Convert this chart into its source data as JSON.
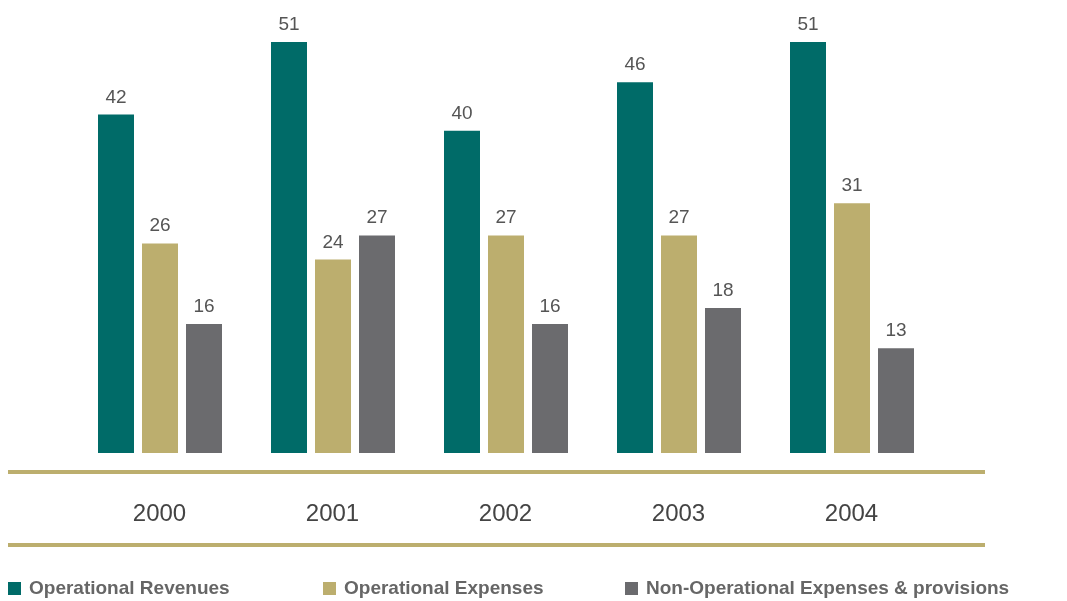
{
  "chart_data": {
    "type": "bar",
    "categories": [
      "2000",
      "2001",
      "2002",
      "2003",
      "2004"
    ],
    "series": [
      {
        "name": "Operational Revenues",
        "color": "#006b68",
        "values": [
          42,
          51,
          40,
          46,
          51
        ]
      },
      {
        "name": "Operational Expenses",
        "color": "#bcae6e",
        "values": [
          26,
          24,
          27,
          27,
          31
        ]
      },
      {
        "name": "Non-Operational Expenses & provisions",
        "color": "#6b6b6e",
        "values": [
          16,
          27,
          16,
          18,
          13
        ]
      }
    ],
    "data_labels": true,
    "grid": false,
    "legend": "bottom"
  }
}
